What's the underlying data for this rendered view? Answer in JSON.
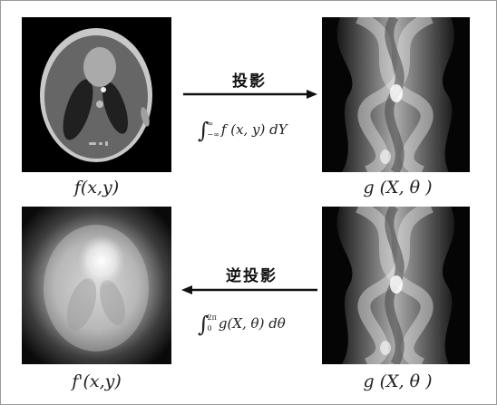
{
  "panels": {
    "phantom_label": "f(x,y)",
    "sinogram_top_label": "g (X, θ )",
    "backprojection_label": "f'(x,y)",
    "sinogram_bottom_label": "g (X, θ )"
  },
  "forward": {
    "operation_label": "投影",
    "formula_integrand": "f (x, y) dY",
    "formula_upper_limit": "∞",
    "formula_lower_limit": "−∞"
  },
  "backward": {
    "operation_label": "逆投影",
    "formula_integrand": "g(X, θ) dθ",
    "formula_upper_limit": "2π",
    "formula_lower_limit": "0"
  },
  "icons": [
    "right-arrow-icon",
    "left-arrow-icon"
  ]
}
